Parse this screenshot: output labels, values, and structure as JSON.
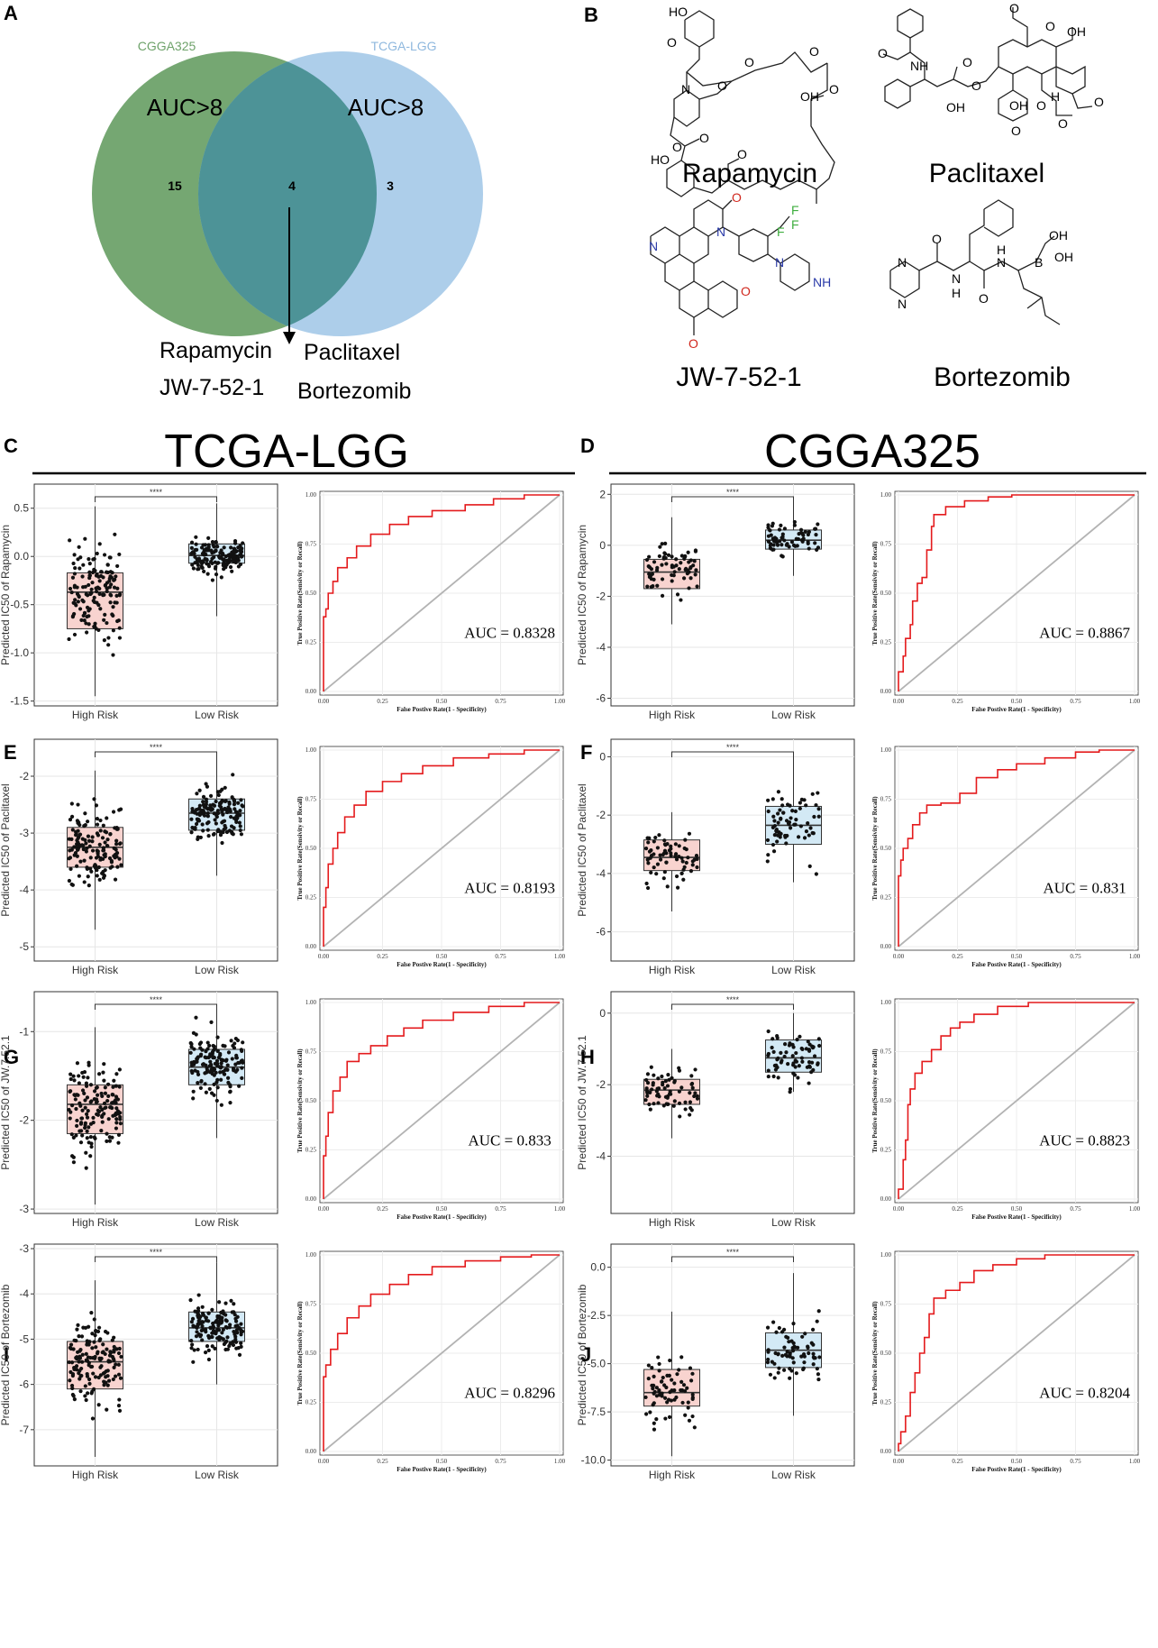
{
  "panel_labels": {
    "A": "A",
    "B": "B",
    "C": "C",
    "D": "D",
    "E": "E",
    "F": "F",
    "G": "G",
    "H": "H",
    "I": "I",
    "J": "J"
  },
  "venn": {
    "left_set": "CGGA325",
    "right_set": "TCGA-LGG",
    "left_title": "AUC>8",
    "right_title": "AUC>8",
    "left_only": "15",
    "overlap": "4",
    "right_only": "3",
    "left_color": "#6ea26a",
    "right_color": "#a9cbe9",
    "drugs": [
      "Rapamycin",
      "Paclitaxel",
      "JW-7-52-1",
      "Bortezomib"
    ]
  },
  "structures": {
    "names": [
      "Rapamycin",
      "Paclitaxel",
      "JW-7-52-1",
      "Bortezomib"
    ],
    "atoms": {
      "rapamycin": [
        "HO",
        "O",
        "N",
        "O",
        "O",
        "O",
        "O",
        "HO",
        "O",
        "OH",
        "O",
        "O"
      ],
      "paclitaxel": [
        "O",
        "NH",
        "OH",
        "O",
        "O",
        "O",
        "OH",
        "O",
        "H",
        "OH",
        "O",
        "O",
        "O",
        "O"
      ],
      "jw": [
        "N",
        "N",
        "O",
        "F",
        "F",
        "F",
        "N",
        "NH",
        "O",
        "O"
      ],
      "bortezomib": [
        "N",
        "N",
        "O",
        "N",
        "H",
        "N",
        "H",
        "O",
        "B",
        "OH",
        "OH"
      ]
    }
  },
  "cohorts": {
    "left": "TCGA-LGG",
    "right": "CGGA325"
  },
  "colors": {
    "high": "#f8d3cf",
    "low": "#d3e9f5",
    "roc": "#e41a1c",
    "diag": "#b3b3b3"
  },
  "chart_data": [
    {
      "panel": "C",
      "type": "box",
      "cohort": "TCGA-LGG",
      "ylabel": "Predicted IC50 of Rapamycin",
      "categories": [
        "High Risk",
        "Low Risk"
      ],
      "ylim": [
        -1.55,
        0.75
      ],
      "yticks": [
        -1.5,
        -1.0,
        -0.5,
        0.0,
        0.5
      ],
      "yticklabels": [
        "-1.5",
        "-1.0",
        "-0.5",
        "0.0",
        "0.5"
      ],
      "significance": "****",
      "boxes": [
        {
          "q1": -0.75,
          "median": -0.37,
          "q3": -0.17,
          "wlo": -1.45,
          "whi": 0.52
        },
        {
          "q1": -0.07,
          "median": 0.01,
          "q3": 0.13,
          "wlo": -0.62,
          "whi": 0.55
        }
      ]
    },
    {
      "panel": "C",
      "type": "roc",
      "cohort": "TCGA-LGG",
      "auc": "AUC = 0.8328",
      "xlabel": "False Postive Rate(1 - Specificity)",
      "ylabel": "True Positive Rate(Sensivity or Recall)",
      "ticks": [
        "0.00",
        "0.25",
        "0.50",
        "0.75",
        "1.00"
      ],
      "curve": [
        [
          0,
          0
        ],
        [
          0,
          0.3
        ],
        [
          0.01,
          0.38
        ],
        [
          0.02,
          0.42
        ],
        [
          0.04,
          0.5
        ],
        [
          0.06,
          0.56
        ],
        [
          0.1,
          0.63
        ],
        [
          0.14,
          0.68
        ],
        [
          0.2,
          0.74
        ],
        [
          0.28,
          0.8
        ],
        [
          0.36,
          0.85
        ],
        [
          0.46,
          0.89
        ],
        [
          0.6,
          0.92
        ],
        [
          0.72,
          0.95
        ],
        [
          0.85,
          0.98
        ],
        [
          0.95,
          1
        ],
        [
          1,
          1
        ]
      ]
    },
    {
      "panel": "D",
      "type": "box",
      "cohort": "CGGA325",
      "ylabel": "Predicted IC50 of Rapamycin",
      "categories": [
        "High Risk",
        "Low Risk"
      ],
      "ylim": [
        -6.3,
        2.4
      ],
      "yticks": [
        -6,
        -4,
        -2,
        0,
        2
      ],
      "yticklabels": [
        "-6",
        "-4",
        "-2",
        "0",
        "2"
      ],
      "significance": "****",
      "boxes": [
        {
          "q1": -1.7,
          "median": -1.05,
          "q3": -0.55,
          "wlo": -3.1,
          "whi": 1.1
        },
        {
          "q1": -0.15,
          "median": 0.2,
          "q3": 0.6,
          "wlo": -1.2,
          "whi": 1.7
        }
      ]
    },
    {
      "panel": "D",
      "type": "roc",
      "cohort": "CGGA325",
      "auc": "AUC = 0.8867",
      "xlabel": "False Postive Rate(1 - Specificity)",
      "ylabel": "True Positive Rate(Sensivity or Recall)",
      "ticks": [
        "0.00",
        "0.25",
        "0.50",
        "0.75",
        "1.00"
      ],
      "curve": [
        [
          0,
          0
        ],
        [
          0,
          0.04
        ],
        [
          0.02,
          0.1
        ],
        [
          0.03,
          0.18
        ],
        [
          0.05,
          0.27
        ],
        [
          0.06,
          0.34
        ],
        [
          0.08,
          0.46
        ],
        [
          0.1,
          0.55
        ],
        [
          0.12,
          0.58
        ],
        [
          0.14,
          0.72
        ],
        [
          0.15,
          0.84
        ],
        [
          0.2,
          0.9
        ],
        [
          0.28,
          0.94
        ],
        [
          0.38,
          0.97
        ],
        [
          0.48,
          0.99
        ],
        [
          0.55,
          1
        ],
        [
          1,
          1
        ]
      ]
    },
    {
      "panel": "E",
      "type": "box",
      "cohort": "TCGA-LGG",
      "ylabel": "Predicted IC50 of Paclitaxel",
      "categories": [
        "High Risk",
        "Low Risk"
      ],
      "ylim": [
        -5.25,
        -1.35
      ],
      "yticks": [
        -5,
        -4,
        -3,
        -2
      ],
      "yticklabels": [
        "-5",
        "-4",
        "-3",
        "-2"
      ],
      "significance": "****",
      "boxes": [
        {
          "q1": -3.6,
          "median": -3.25,
          "q3": -2.9,
          "wlo": -4.7,
          "whi": -1.9
        },
        {
          "q1": -2.95,
          "median": -2.65,
          "q3": -2.4,
          "wlo": -3.75,
          "whi": -1.6
        }
      ]
    },
    {
      "panel": "E",
      "type": "roc",
      "cohort": "TCGA-LGG",
      "auc": "AUC = 0.8193",
      "xlabel": "False Postive Rate(1 - Specificity)",
      "ylabel": "True Positive Rate(Sensivity or Recall)",
      "ticks": [
        "0.00",
        "0.25",
        "0.50",
        "0.75",
        "1.00"
      ],
      "curve": [
        [
          0,
          0
        ],
        [
          0,
          0.1
        ],
        [
          0.01,
          0.2
        ],
        [
          0.02,
          0.3
        ],
        [
          0.04,
          0.42
        ],
        [
          0.06,
          0.5
        ],
        [
          0.09,
          0.58
        ],
        [
          0.13,
          0.66
        ],
        [
          0.18,
          0.72
        ],
        [
          0.25,
          0.79
        ],
        [
          0.33,
          0.84
        ],
        [
          0.42,
          0.88
        ],
        [
          0.55,
          0.92
        ],
        [
          0.7,
          0.96
        ],
        [
          0.85,
          0.98
        ],
        [
          1,
          1
        ]
      ]
    },
    {
      "panel": "F",
      "type": "box",
      "cohort": "CGGA325",
      "ylabel": "Predicted IC50 of Paclitaxel",
      "categories": [
        "High Risk",
        "Low Risk"
      ],
      "ylim": [
        -7.0,
        0.6
      ],
      "yticks": [
        -6,
        -4,
        -2,
        0
      ],
      "yticklabels": [
        "-6",
        "-4",
        "-2",
        "0"
      ],
      "significance": "****",
      "boxes": [
        {
          "q1": -3.9,
          "median": -3.45,
          "q3": -2.85,
          "wlo": -5.3,
          "whi": -1.9
        },
        {
          "q1": -3.0,
          "median": -2.35,
          "q3": -1.7,
          "wlo": -4.3,
          "whi": 0.1
        }
      ]
    },
    {
      "panel": "F",
      "type": "roc",
      "cohort": "CGGA325",
      "auc": "AUC = 0.831",
      "xlabel": "False Postive Rate(1 - Specificity)",
      "ylabel": "True Positive Rate(Sensivity or Recall)",
      "ticks": [
        "0.00",
        "0.25",
        "0.50",
        "0.75",
        "1.00"
      ],
      "curve": [
        [
          0,
          0
        ],
        [
          0,
          0.3
        ],
        [
          0.01,
          0.36
        ],
        [
          0.02,
          0.44
        ],
        [
          0.04,
          0.5
        ],
        [
          0.06,
          0.55
        ],
        [
          0.09,
          0.62
        ],
        [
          0.12,
          0.68
        ],
        [
          0.18,
          0.72
        ],
        [
          0.26,
          0.73
        ],
        [
          0.33,
          0.78
        ],
        [
          0.42,
          0.86
        ],
        [
          0.5,
          0.9
        ],
        [
          0.62,
          0.93
        ],
        [
          0.75,
          0.96
        ],
        [
          0.85,
          0.99
        ],
        [
          0.92,
          1
        ],
        [
          1,
          1
        ]
      ]
    },
    {
      "panel": "G",
      "type": "box",
      "cohort": "TCGA-LGG",
      "ylabel": "Predicted IC50 of JW.7.52.1",
      "categories": [
        "High Risk",
        "Low Risk"
      ],
      "ylim": [
        -3.05,
        -0.55
      ],
      "yticks": [
        -3,
        -2,
        -1
      ],
      "yticklabels": [
        "-3",
        "-2",
        "-1"
      ],
      "significance": "****",
      "boxes": [
        {
          "q1": -2.15,
          "median": -1.82,
          "q3": -1.6,
          "wlo": -2.95,
          "whi": -0.95
        },
        {
          "q1": -1.6,
          "median": -1.4,
          "q3": -1.2,
          "wlo": -2.2,
          "whi": -0.75
        }
      ]
    },
    {
      "panel": "G",
      "type": "roc",
      "cohort": "TCGA-LGG",
      "auc": "AUC = 0.833",
      "xlabel": "False Postive Rate(1 - Specificity)",
      "ylabel": "True Positive Rate(Sensivity or Recall)",
      "ticks": [
        "0.00",
        "0.25",
        "0.50",
        "0.75",
        "1.00"
      ],
      "curve": [
        [
          0,
          0
        ],
        [
          0,
          0.08
        ],
        [
          0.01,
          0.22
        ],
        [
          0.02,
          0.32
        ],
        [
          0.04,
          0.44
        ],
        [
          0.07,
          0.55
        ],
        [
          0.1,
          0.62
        ],
        [
          0.15,
          0.7
        ],
        [
          0.2,
          0.74
        ],
        [
          0.27,
          0.78
        ],
        [
          0.34,
          0.83
        ],
        [
          0.42,
          0.87
        ],
        [
          0.55,
          0.91
        ],
        [
          0.7,
          0.95
        ],
        [
          0.85,
          0.98
        ],
        [
          1,
          1
        ]
      ]
    },
    {
      "panel": "H",
      "type": "box",
      "cohort": "CGGA325",
      "ylabel": "Predicted IC50 of JW.7.52.1",
      "categories": [
        "High Risk",
        "Low Risk"
      ],
      "ylim": [
        -5.6,
        0.6
      ],
      "yticks": [
        -4,
        -2,
        0
      ],
      "yticklabels": [
        "-4",
        "-2",
        "0"
      ],
      "significance": "****",
      "boxes": [
        {
          "q1": -2.55,
          "median": -2.15,
          "q3": -1.85,
          "wlo": -3.5,
          "whi": -1.0
        },
        {
          "q1": -1.65,
          "median": -1.25,
          "q3": -0.75,
          "wlo": -2.2,
          "whi": 0.0
        }
      ]
    },
    {
      "panel": "H",
      "type": "roc",
      "cohort": "CGGA325",
      "auc": "AUC = 0.8823",
      "xlabel": "False Postive Rate(1 - Specificity)",
      "ylabel": "True Positive Rate(Sensivity or Recall)",
      "ticks": [
        "0.00",
        "0.25",
        "0.50",
        "0.75",
        "1.00"
      ],
      "curve": [
        [
          0,
          0
        ],
        [
          0.02,
          0.05
        ],
        [
          0.03,
          0.2
        ],
        [
          0.04,
          0.3
        ],
        [
          0.05,
          0.48
        ],
        [
          0.07,
          0.56
        ],
        [
          0.1,
          0.64
        ],
        [
          0.14,
          0.7
        ],
        [
          0.18,
          0.76
        ],
        [
          0.22,
          0.83
        ],
        [
          0.26,
          0.87
        ],
        [
          0.32,
          0.9
        ],
        [
          0.42,
          0.94
        ],
        [
          0.55,
          0.98
        ],
        [
          0.6,
          1
        ],
        [
          1,
          1
        ]
      ]
    },
    {
      "panel": "I",
      "type": "box",
      "cohort": "TCGA-LGG",
      "ylabel": "Predicted IC50 of Bortezomib",
      "categories": [
        "High Risk",
        "Low Risk"
      ],
      "ylim": [
        -7.8,
        -2.9
      ],
      "yticks": [
        -7,
        -6,
        -5,
        -4,
        -3
      ],
      "yticklabels": [
        "-7",
        "-6",
        "-5",
        "-4",
        "-3"
      ],
      "significance": "****",
      "boxes": [
        {
          "q1": -6.1,
          "median": -5.5,
          "q3": -5.05,
          "wlo": -7.6,
          "whi": -3.7
        },
        {
          "q1": -5.05,
          "median": -4.75,
          "q3": -4.4,
          "wlo": -6.0,
          "whi": -3.3
        }
      ]
    },
    {
      "panel": "I",
      "type": "roc",
      "cohort": "TCGA-LGG",
      "auc": "AUC = 0.8296",
      "xlabel": "False Postive Rate(1 - Specificity)",
      "ylabel": "True Positive Rate(Sensivity or Recall)",
      "ticks": [
        "0.00",
        "0.25",
        "0.50",
        "0.75",
        "1.00"
      ],
      "curve": [
        [
          0,
          0
        ],
        [
          0,
          0.3
        ],
        [
          0.01,
          0.38
        ],
        [
          0.03,
          0.44
        ],
        [
          0.06,
          0.52
        ],
        [
          0.1,
          0.6
        ],
        [
          0.15,
          0.68
        ],
        [
          0.2,
          0.74
        ],
        [
          0.28,
          0.8
        ],
        [
          0.36,
          0.85
        ],
        [
          0.46,
          0.9
        ],
        [
          0.6,
          0.94
        ],
        [
          0.75,
          0.97
        ],
        [
          0.88,
          0.99
        ],
        [
          1,
          1
        ]
      ]
    },
    {
      "panel": "J",
      "type": "box",
      "cohort": "CGGA325",
      "ylabel": "Predicted IC50 of Bortezomib",
      "categories": [
        "High Risk",
        "Low Risk"
      ],
      "ylim": [
        -10.3,
        1.2
      ],
      "yticks": [
        -10.0,
        -7.5,
        -5.0,
        -2.5,
        0.0
      ],
      "yticklabels": [
        "-10.0",
        "-7.5",
        "-5.0",
        "-2.5",
        "0.0"
      ],
      "significance": "****",
      "boxes": [
        {
          "q1": -7.2,
          "median": -6.5,
          "q3": -5.3,
          "wlo": -9.8,
          "whi": -2.3
        },
        {
          "q1": -5.2,
          "median": -4.3,
          "q3": -3.4,
          "wlo": -7.7,
          "whi": -0.3
        }
      ]
    },
    {
      "panel": "J",
      "type": "roc",
      "cohort": "CGGA325",
      "auc": "AUC = 0.8204",
      "xlabel": "False Postive Rate(1 - Specificity)",
      "ylabel": "True Positive Rate(Sensivity or Recall)",
      "ticks": [
        "0.00",
        "0.25",
        "0.50",
        "0.75",
        "1.00"
      ],
      "curve": [
        [
          0,
          0
        ],
        [
          0.01,
          0.04
        ],
        [
          0.03,
          0.1
        ],
        [
          0.05,
          0.18
        ],
        [
          0.07,
          0.3
        ],
        [
          0.09,
          0.4
        ],
        [
          0.11,
          0.5
        ],
        [
          0.13,
          0.58
        ],
        [
          0.15,
          0.7
        ],
        [
          0.2,
          0.78
        ],
        [
          0.26,
          0.82
        ],
        [
          0.32,
          0.86
        ],
        [
          0.4,
          0.92
        ],
        [
          0.5,
          0.95
        ],
        [
          0.62,
          0.98
        ],
        [
          0.75,
          1
        ],
        [
          1,
          1
        ]
      ]
    }
  ]
}
